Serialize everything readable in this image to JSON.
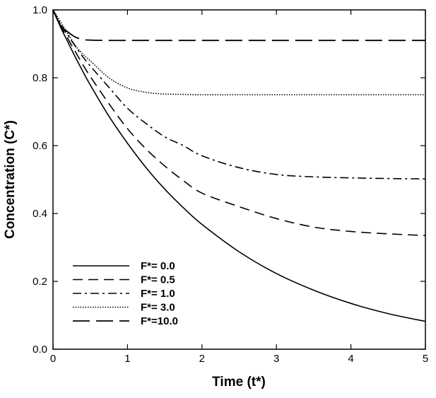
{
  "chart_data": {
    "type": "line",
    "xlabel": "Time (t*)",
    "ylabel": "Concentration (C*)",
    "xlim": [
      0,
      5
    ],
    "ylim": [
      0,
      1
    ],
    "xticks": [
      "0",
      "1",
      "2",
      "3",
      "4",
      "5"
    ],
    "yticks": [
      "0.0",
      "0.2",
      "0.4",
      "0.6",
      "0.8",
      "1.0"
    ],
    "grid": false,
    "legend_position": "bottom-left",
    "x": [
      0,
      0.1,
      0.2,
      0.3,
      0.4,
      0.5,
      0.75,
      1.0,
      1.25,
      1.5,
      1.75,
      2.0,
      2.5,
      3.0,
      3.5,
      4.0,
      4.5,
      5.0
    ],
    "series": [
      {
        "name": "F*= 0.0",
        "style": "solid",
        "values": [
          1.0,
          0.95,
          0.905,
          0.861,
          0.819,
          0.779,
          0.687,
          0.607,
          0.535,
          0.472,
          0.417,
          0.368,
          0.287,
          0.223,
          0.174,
          0.135,
          0.105,
          0.082
        ]
      },
      {
        "name": "F*= 0.5",
        "style": "dashed",
        "values": [
          1.0,
          0.955,
          0.915,
          0.877,
          0.839,
          0.804,
          0.724,
          0.65,
          0.59,
          0.54,
          0.497,
          0.46,
          0.42,
          0.385,
          0.36,
          0.347,
          0.34,
          0.335
        ]
      },
      {
        "name": "F*= 1.0",
        "style": "dash-dot",
        "values": [
          1.0,
          0.96,
          0.925,
          0.893,
          0.862,
          0.835,
          0.772,
          0.71,
          0.665,
          0.626,
          0.6,
          0.57,
          0.535,
          0.515,
          0.508,
          0.505,
          0.503,
          0.502
        ]
      },
      {
        "name": "F*= 3.0",
        "style": "dotted",
        "values": [
          1.0,
          0.965,
          0.93,
          0.895,
          0.87,
          0.85,
          0.8,
          0.77,
          0.757,
          0.752,
          0.751,
          0.75,
          0.75,
          0.75,
          0.75,
          0.75,
          0.75,
          0.75
        ]
      },
      {
        "name": "F*=10.0",
        "style": "long-dashed",
        "values": [
          1.0,
          0.955,
          0.935,
          0.92,
          0.913,
          0.911,
          0.91,
          0.91,
          0.91,
          0.91,
          0.91,
          0.91,
          0.91,
          0.91,
          0.91,
          0.91,
          0.91,
          0.91
        ]
      }
    ]
  }
}
